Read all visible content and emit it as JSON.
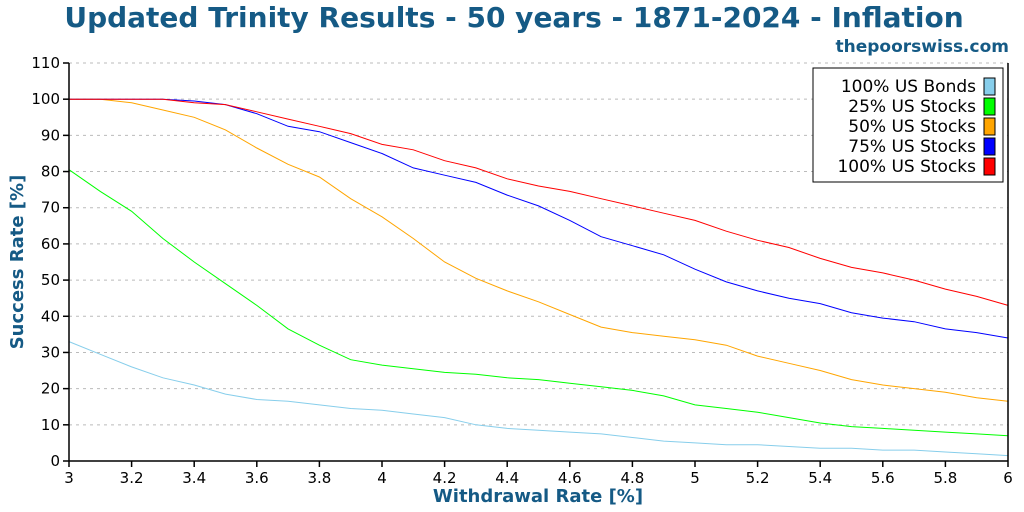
{
  "chart_data": {
    "type": "line",
    "title": "Updated Trinity Results - 50 years - 1871-2024 - Inflation",
    "subtitle": "thepoorswiss.com",
    "xlabel": "Withdrawal Rate [%]",
    "ylabel": "Success Rate [%]",
    "xlim": [
      3,
      6
    ],
    "ylim": [
      0,
      110
    ],
    "xticks": [
      "3",
      "3.2",
      "3.4",
      "3.6",
      "3.8",
      "4",
      "4.2",
      "4.4",
      "4.6",
      "4.8",
      "5",
      "5.2",
      "5.4",
      "5.6",
      "5.8",
      "6"
    ],
    "yticks": [
      "0",
      "10",
      "20",
      "30",
      "40",
      "50",
      "60",
      "70",
      "80",
      "90",
      "100",
      "110"
    ],
    "grid": "horizontal dashed",
    "legend_position": "top-right",
    "x": [
      3.0,
      3.1,
      3.2,
      3.3,
      3.4,
      3.5,
      3.6,
      3.7,
      3.8,
      3.9,
      4.0,
      4.1,
      4.2,
      4.3,
      4.4,
      4.5,
      4.6,
      4.7,
      4.8,
      4.9,
      5.0,
      5.1,
      5.2,
      5.3,
      5.4,
      5.5,
      5.6,
      5.7,
      5.8,
      5.9,
      6.0
    ],
    "series": [
      {
        "name": "100% US Bonds",
        "color": "#87ceeb",
        "values": [
          33,
          29.5,
          26,
          23,
          21,
          18.5,
          17,
          16.5,
          15.5,
          14.5,
          14,
          13,
          12,
          10,
          9,
          8.5,
          8,
          7.5,
          6.5,
          5.5,
          5,
          4.5,
          4.5,
          4,
          3.5,
          3.5,
          3,
          3,
          2.5,
          2,
          1.5
        ]
      },
      {
        "name": "25% US Stocks",
        "color": "#00ff00",
        "values": [
          80.5,
          74.5,
          69,
          61.5,
          55,
          49,
          43,
          36.5,
          32,
          28,
          26.5,
          25.5,
          24.5,
          24,
          23,
          22.5,
          21.5,
          20.5,
          19.5,
          18,
          15.5,
          14.5,
          13.5,
          12,
          10.5,
          9.5,
          9,
          8.5,
          8,
          7.5,
          7
        ]
      },
      {
        "name": "50% US Stocks",
        "color": "#ffa500",
        "values": [
          100,
          100,
          99,
          97,
          95,
          91.5,
          86.5,
          82,
          78.5,
          72.5,
          67.5,
          61.5,
          55,
          50.5,
          47,
          44,
          40.5,
          37,
          35.5,
          34.5,
          33.5,
          32,
          29,
          27,
          25,
          22.5,
          21,
          20,
          19,
          17.5,
          16.5
        ]
      },
      {
        "name": "75% US Stocks",
        "color": "#0000ff",
        "values": [
          100,
          100,
          100,
          100,
          99.5,
          98.5,
          96,
          92.5,
          91,
          88,
          85,
          81,
          79,
          77,
          73.5,
          70.5,
          66.5,
          62,
          59.5,
          57,
          53,
          49.5,
          47,
          45,
          43.5,
          41,
          39.5,
          38.5,
          36.5,
          35.5,
          34
        ]
      },
      {
        "name": "100% US Stocks",
        "color": "#ff0000",
        "values": [
          100,
          100,
          100,
          100,
          99,
          98.5,
          96.5,
          94.5,
          92.5,
          90.5,
          87.5,
          86,
          83,
          81,
          78,
          76,
          74.5,
          72.5,
          70.5,
          68.5,
          66.5,
          63.5,
          61,
          59,
          56,
          53.5,
          52,
          50,
          47.5,
          45.5,
          43
        ]
      }
    ]
  }
}
